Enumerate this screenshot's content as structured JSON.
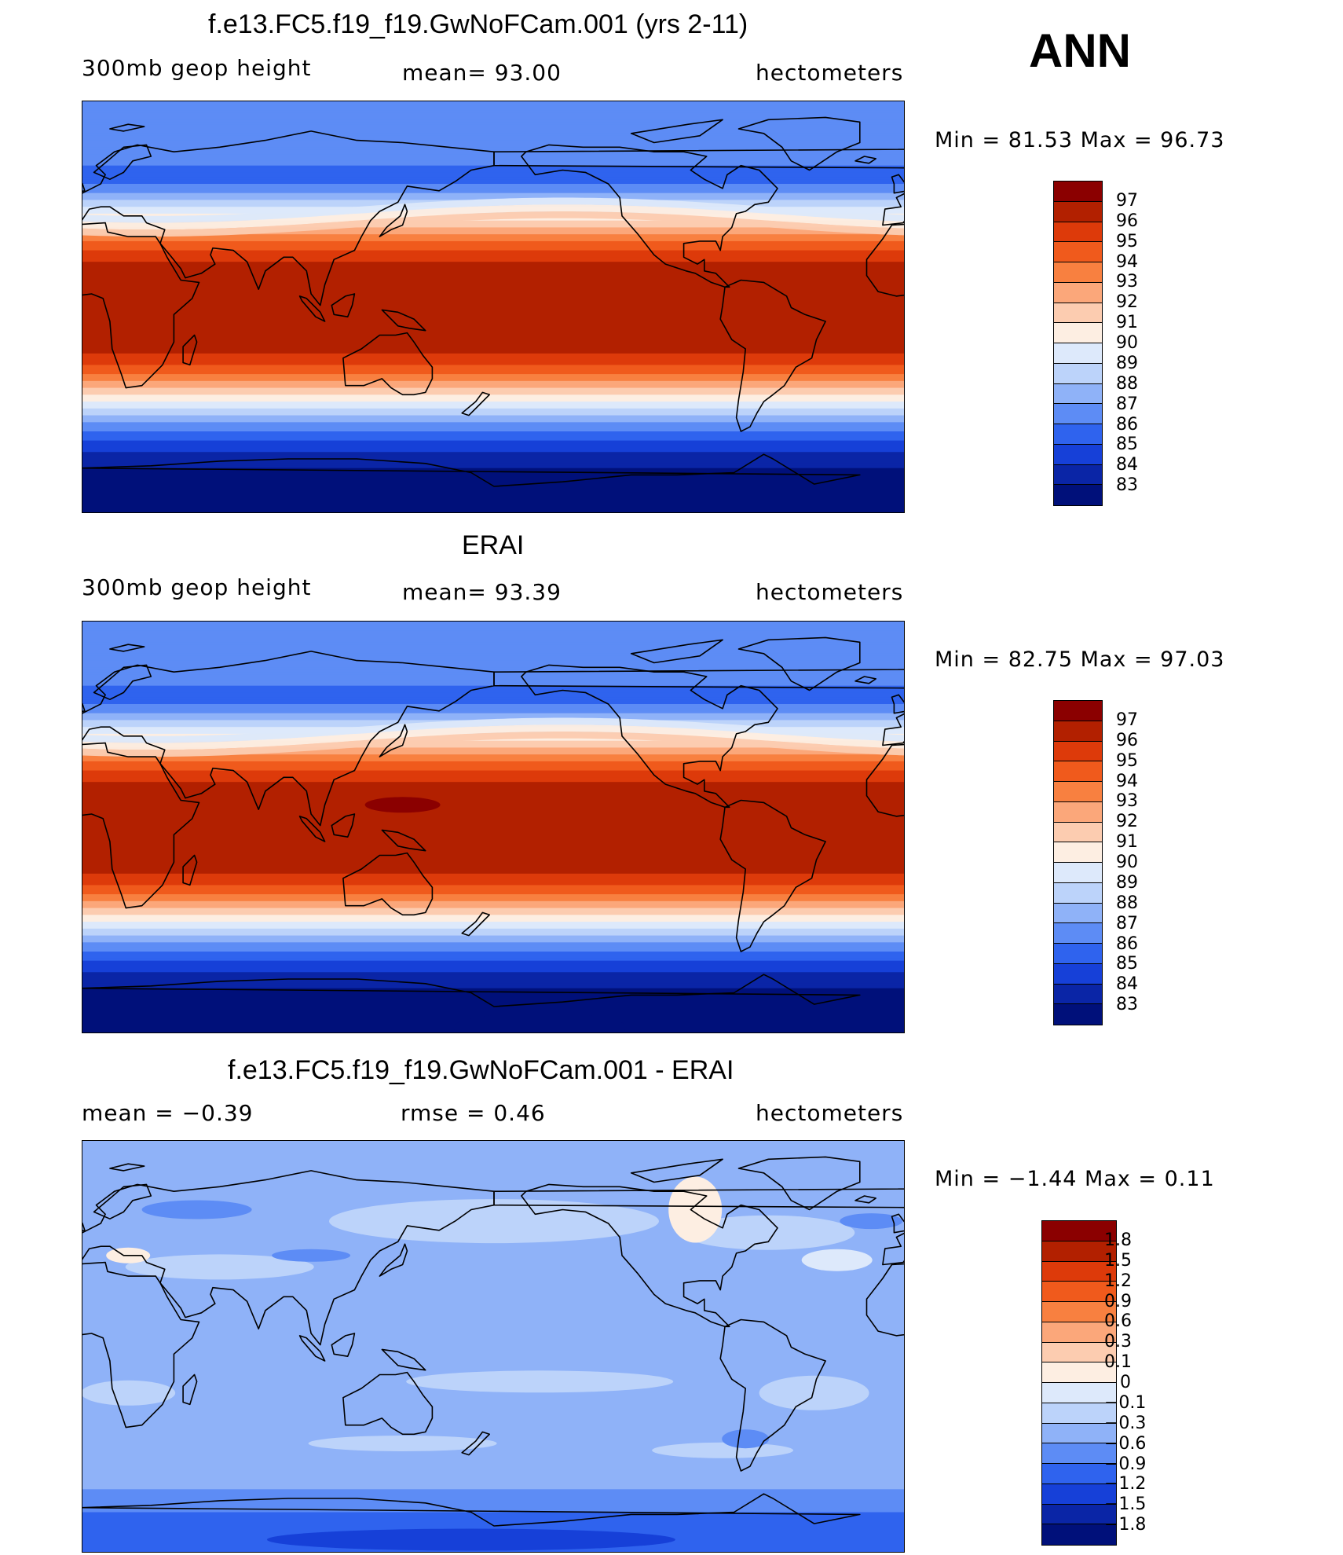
{
  "season": "ANN",
  "panels": [
    {
      "title": "f.e13.FC5.f19_f19.GwNoFCam.001 (yrs 2-11)",
      "variable": "300mb  geop  height",
      "stat": "mean=   93.00",
      "units": "hectometers",
      "minmax": "Min  =    81.53  Max  =    96.73",
      "colorbar": [
        "97",
        "96",
        "95",
        "94",
        "93",
        "92",
        "91",
        "90",
        "89",
        "88",
        "87",
        "86",
        "85",
        "84",
        "83"
      ]
    },
    {
      "title": "ERAI",
      "variable": "300mb  geop  height",
      "stat": "mean=   93.39",
      "units": "hectometers",
      "minmax": "Min  =    82.75  Max  =    97.03",
      "colorbar": [
        "97",
        "96",
        "95",
        "94",
        "93",
        "92",
        "91",
        "90",
        "89",
        "88",
        "87",
        "86",
        "85",
        "84",
        "83"
      ]
    },
    {
      "title": "f.e13.FC5.f19_f19.GwNoFCam.001 - ERAI",
      "stat_left": "mean  =    −0.39",
      "stat": "rmse  =     0.46",
      "units": "hectometers",
      "minmax": "Min  =   −1.44  Max  =     0.11",
      "colorbar": [
        "1.8",
        "1.5",
        "1.2",
        "0.9",
        "0.6",
        "0.3",
        "0.1",
        "0",
        "−0.1",
        "−0.3",
        "−0.6",
        "−0.9",
        "−1.2",
        "−1.5",
        "−1.8"
      ]
    }
  ],
  "colors": {
    "abs_scale": [
      "#8b0000",
      "#b22000",
      "#dd3a0a",
      "#f05a1c",
      "#f88040",
      "#fba77a",
      "#fcccb0",
      "#fdeee2",
      "#dde9fb",
      "#bcd3fa",
      "#8fb2f8",
      "#5d8cf5",
      "#2f63ee",
      "#1640d8",
      "#0a25a6",
      "#00107a"
    ],
    "diff_scale": [
      "#8b0000",
      "#b22000",
      "#dd3a0a",
      "#f05a1c",
      "#f88040",
      "#fba77a",
      "#fcccb0",
      "#fdeee2",
      "#dde9fb",
      "#bcd3fa",
      "#8fb2f8",
      "#5d8cf5",
      "#2f63ee",
      "#1640d8",
      "#0a25a6",
      "#00107a"
    ],
    "coast": "#000000"
  }
}
